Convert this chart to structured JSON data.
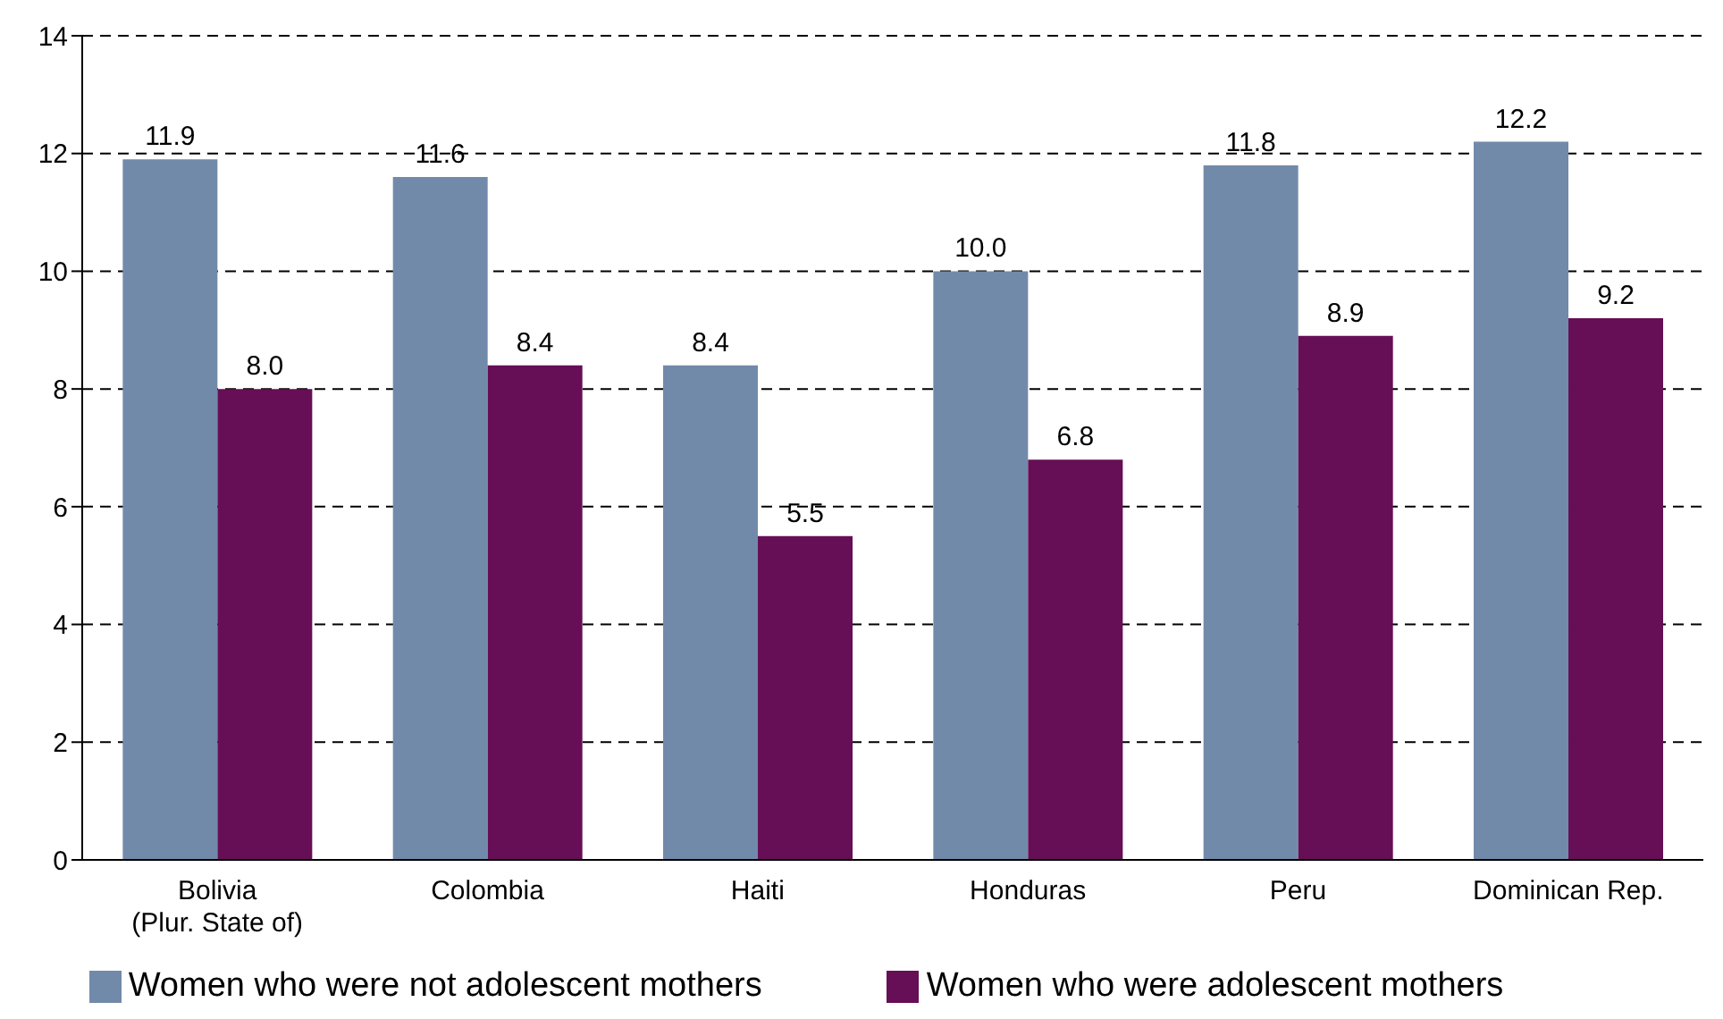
{
  "chart_data": {
    "type": "bar",
    "categories": [
      "Bolivia\n(Plur. State of)",
      "Colombia",
      "Haiti",
      "Honduras",
      "Peru",
      "Dominican Rep."
    ],
    "series": [
      {
        "name": "Women who were not adolescent mothers",
        "color": "#728aaa",
        "values": [
          11.9,
          11.6,
          8.4,
          10.0,
          11.8,
          12.2
        ],
        "value_labels": [
          "11.9",
          "11.6",
          "8.4",
          "10.0",
          "11.8",
          "12.2"
        ]
      },
      {
        "name": "Women who were adolescent mothers",
        "color": "#660e56",
        "values": [
          8.0,
          8.4,
          5.5,
          6.8,
          8.9,
          9.2
        ],
        "value_labels": [
          "8.0",
          "8.4",
          "5.5",
          "6.8",
          "8.9",
          "9.2"
        ]
      }
    ],
    "ylim": [
      0,
      14
    ],
    "yticks": [
      0,
      2,
      4,
      6,
      8,
      10,
      12,
      14
    ],
    "grid": "y",
    "legend": "bottom"
  }
}
